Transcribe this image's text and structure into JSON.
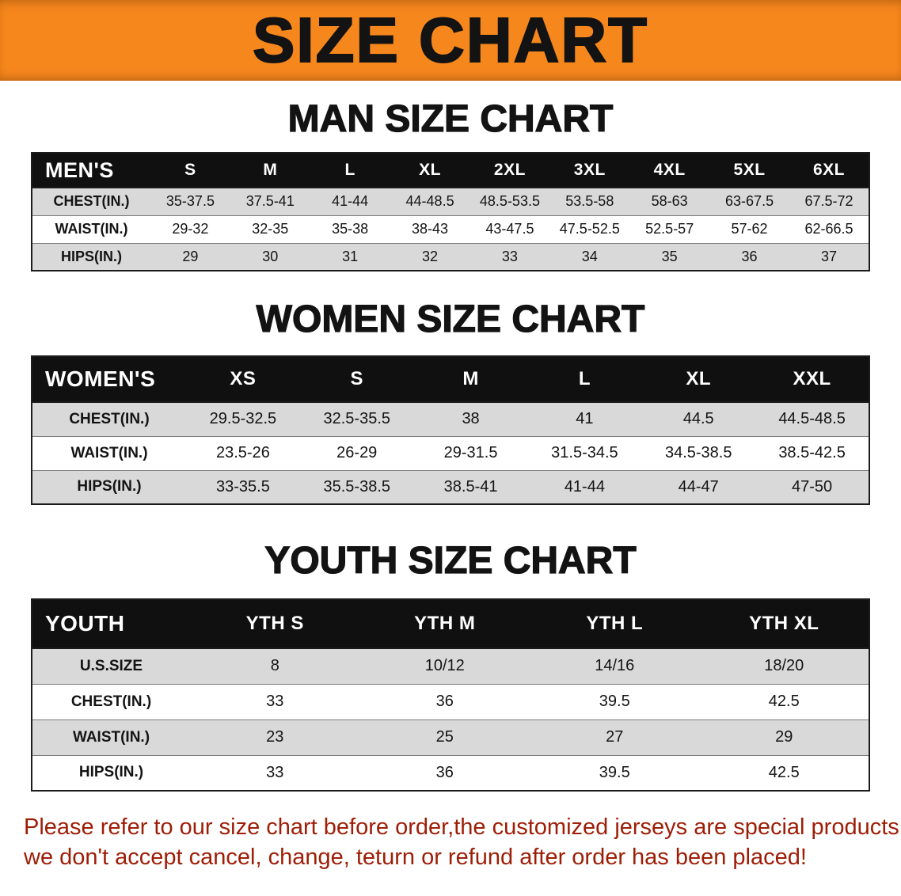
{
  "banner": {
    "title": "SIZE CHART"
  },
  "colors": {
    "banner_bg": "#f6871d",
    "table_header_bg": "#101010",
    "row_stripe": "#d9d9d9",
    "disclaimer_text": "#9e1d06"
  },
  "sections": [
    {
      "heading": "MAN SIZE CHART",
      "table": {
        "header": [
          "MEN'S",
          "S",
          "M",
          "L",
          "XL",
          "2XL",
          "3XL",
          "4XL",
          "5XL",
          "6XL"
        ],
        "rows": [
          [
            "CHEST(IN.)",
            "35-37.5",
            "37.5-41",
            "41-44",
            "44-48.5",
            "48.5-53.5",
            "53.5-58",
            "58-63",
            "63-67.5",
            "67.5-72"
          ],
          [
            "WAIST(IN.)",
            "29-32",
            "32-35",
            "35-38",
            "38-43",
            "43-47.5",
            "47.5-52.5",
            "52.5-57",
            "57-62",
            "62-66.5"
          ],
          [
            "HIPS(IN.)",
            "29",
            "30",
            "31",
            "32",
            "33",
            "34",
            "35",
            "36",
            "37"
          ]
        ]
      }
    },
    {
      "heading": "WOMEN SIZE CHART",
      "table": {
        "header": [
          "WOMEN'S",
          "XS",
          "S",
          "M",
          "L",
          "XL",
          "XXL"
        ],
        "rows": [
          [
            "CHEST(IN.)",
            "29.5-32.5",
            "32.5-35.5",
            "38",
            "41",
            "44.5",
            "44.5-48.5"
          ],
          [
            "WAIST(IN.)",
            "23.5-26",
            "26-29",
            "29-31.5",
            "31.5-34.5",
            "34.5-38.5",
            "38.5-42.5"
          ],
          [
            "HIPS(IN.)",
            "33-35.5",
            "35.5-38.5",
            "38.5-41",
            "41-44",
            "44-47",
            "47-50"
          ]
        ]
      }
    },
    {
      "heading": "YOUTH SIZE CHART",
      "table": {
        "header": [
          "YOUTH",
          "YTH S",
          "YTH M",
          "YTH L",
          "YTH XL"
        ],
        "rows": [
          [
            "U.S.SIZE",
            "8",
            "10/12",
            "14/16",
            "18/20"
          ],
          [
            "CHEST(IN.)",
            "33",
            "36",
            "39.5",
            "42.5"
          ],
          [
            "WAIST(IN.)",
            "23",
            "25",
            "27",
            "29"
          ],
          [
            "HIPS(IN.)",
            "33",
            "36",
            "39.5",
            "42.5"
          ]
        ]
      }
    }
  ],
  "disclaimer": {
    "line1": "Please refer to our size chart before order,the customized jerseys are special products,",
    "line2": "we don't accept cancel, change, teturn or refund after order has been placed!"
  }
}
